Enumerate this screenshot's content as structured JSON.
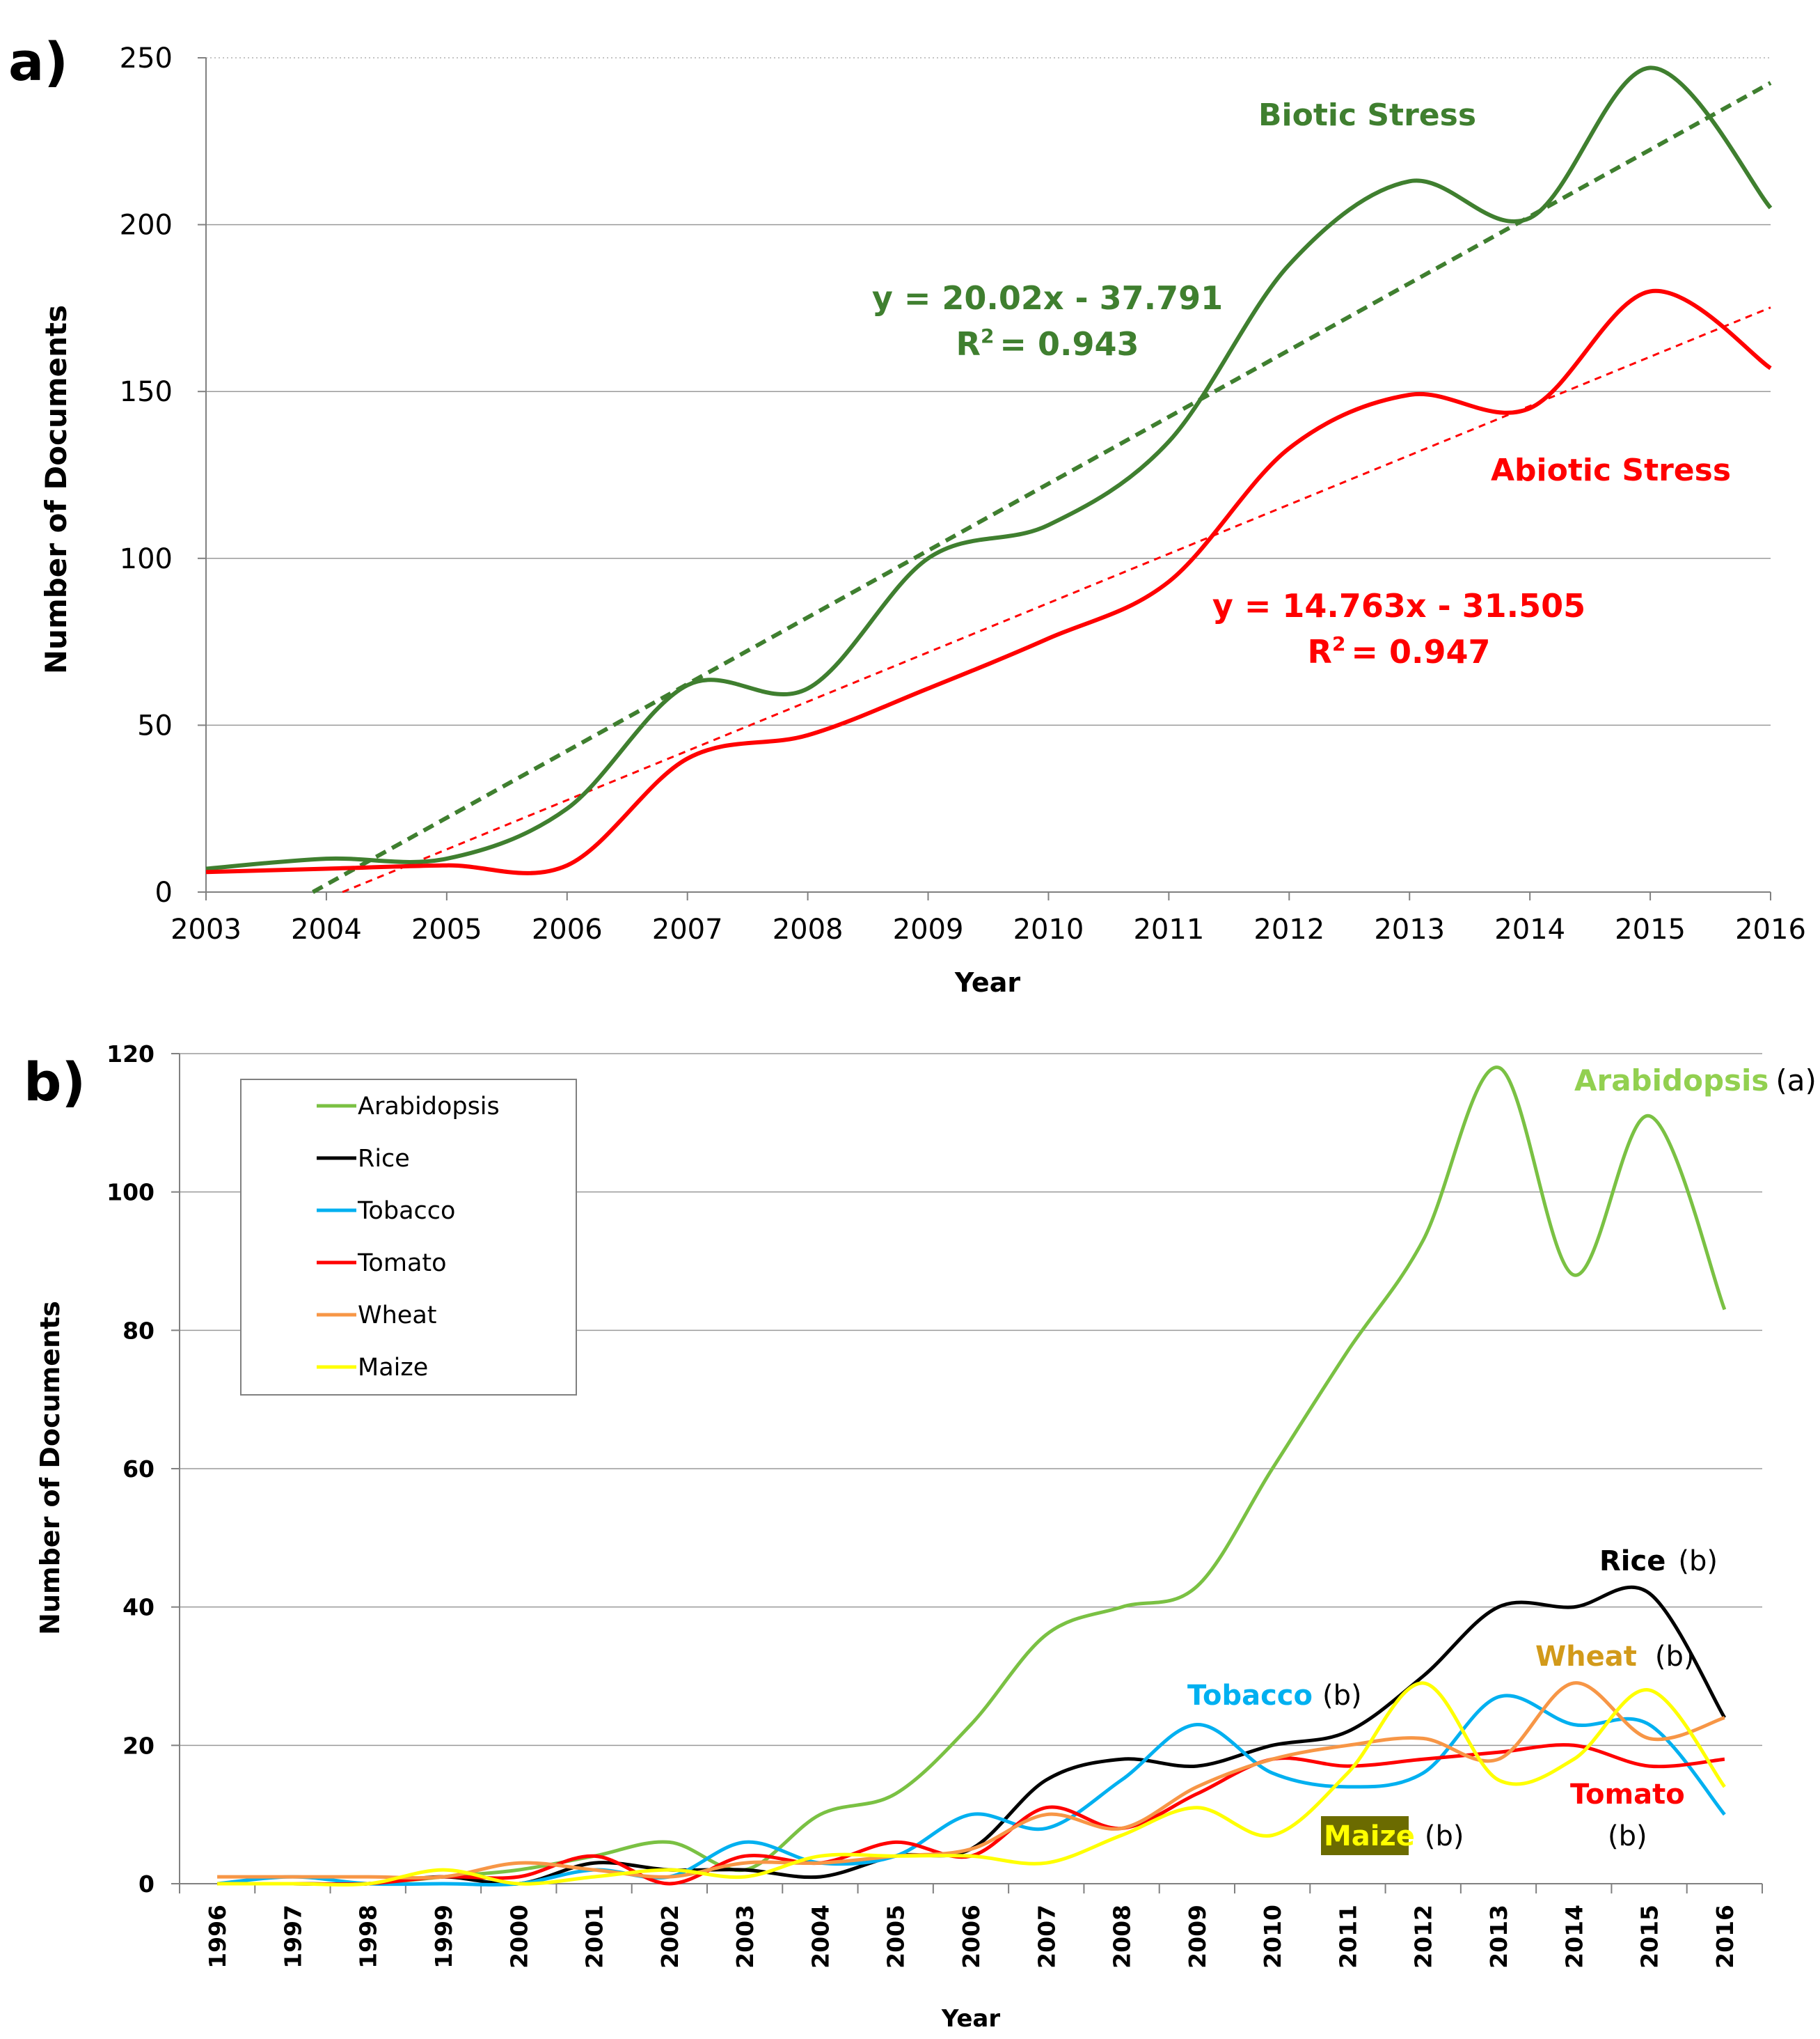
{
  "chart_data": [
    {
      "type": "line",
      "panel_label": "a)",
      "x": [
        2003,
        2004,
        2005,
        2006,
        2007,
        2008,
        2009,
        2010,
        2011,
        2012,
        2013,
        2014,
        2015,
        2016
      ],
      "xticks": [
        "2003",
        "2004",
        "2005",
        "2006",
        "2007",
        "2008",
        "2009",
        "2010",
        "2011",
        "2012",
        "2013",
        "2014",
        "2015",
        "2016"
      ],
      "yticks": [
        "0",
        "50",
        "100",
        "150",
        "200",
        "250"
      ],
      "xlabel": "Year",
      "ylabel": "Number of Documents",
      "ylim": [
        0,
        250
      ],
      "grid": true,
      "series": [
        {
          "name": "Biotic Stress",
          "color": "#3f7f2f",
          "values": [
            7,
            10,
            10,
            25,
            62,
            61,
            100,
            110,
            135,
            188,
            213,
            202,
            247,
            205
          ]
        },
        {
          "name": "Abiotic Stress",
          "color": "#ff0000",
          "values": [
            6,
            7,
            8,
            8,
            40,
            47,
            61,
            76,
            93,
            133,
            149,
            145,
            180,
            157
          ]
        }
      ],
      "trendlines": [
        {
          "series": "Biotic Stress",
          "slope": 20.02,
          "intercept": -37.791,
          "equation": "y = 20.02x - 37.791",
          "r2_prefix": "R",
          "r2_value": "= 0.943",
          "color": "#3f7f2f"
        },
        {
          "series": "Abiotic Stress",
          "slope": 14.763,
          "intercept": -31.505,
          "equation": "y = 14.763x - 31.505",
          "r2_prefix": "R",
          "r2_value": "= 0.947",
          "color": "#ff0000"
        }
      ],
      "superscript": "2",
      "annotations": {
        "biotic_label": "Biotic Stress",
        "abiotic_label": "Abiotic Stress"
      }
    },
    {
      "type": "line",
      "panel_label": "b)",
      "x": [
        1996,
        1997,
        1998,
        1999,
        2000,
        2001,
        2002,
        2003,
        2004,
        2005,
        2006,
        2007,
        2008,
        2009,
        2010,
        2011,
        2012,
        2013,
        2014,
        2015,
        2016
      ],
      "xticks": [
        "1996",
        "1997",
        "1998",
        "1999",
        "2000",
        "2001",
        "2002",
        "2003",
        "2004",
        "2005",
        "2006",
        "2007",
        "2008",
        "2009",
        "2010",
        "2011",
        "2012",
        "2013",
        "2014",
        "2015",
        "2016"
      ],
      "yticks": [
        "0",
        "20",
        "40",
        "60",
        "80",
        "100",
        "120"
      ],
      "xlabel": "Year",
      "ylabel": "Number of Documents",
      "ylim": [
        0,
        120
      ],
      "grid": true,
      "legend": "top-left",
      "series": [
        {
          "name": "Arabidopsis",
          "color": "#7ac143",
          "values": [
            0,
            0,
            0,
            1,
            2,
            4,
            6,
            2,
            10,
            13,
            23,
            36,
            40,
            43,
            60,
            77,
            93,
            118,
            88,
            111,
            83
          ]
        },
        {
          "name": "Rice",
          "color": "#000000",
          "values": [
            0,
            0,
            0,
            1,
            0,
            3,
            2,
            2,
            1,
            4,
            5,
            15,
            18,
            17,
            20,
            22,
            30,
            40,
            40,
            42,
            24
          ]
        },
        {
          "name": "Tobacco",
          "color": "#00b0f0",
          "values": [
            0,
            1,
            0,
            0,
            0,
            2,
            1,
            6,
            3,
            4,
            10,
            8,
            15,
            23,
            16,
            14,
            16,
            27,
            23,
            23,
            10
          ]
        },
        {
          "name": "Tomato",
          "color": "#ff0000",
          "values": [
            0,
            0,
            0,
            1,
            1,
            4,
            0,
            4,
            3,
            6,
            4,
            11,
            8,
            13,
            18,
            17,
            18,
            19,
            20,
            17,
            18
          ]
        },
        {
          "name": "Wheat",
          "color": "#f79646",
          "values": [
            1,
            1,
            1,
            1,
            3,
            2,
            1,
            3,
            3,
            4,
            5,
            10,
            8,
            14,
            18,
            20,
            21,
            18,
            29,
            21,
            24
          ]
        },
        {
          "name": "Maize",
          "color": "#ffff00",
          "values": [
            0,
            0,
            0,
            2,
            0,
            1,
            2,
            1,
            4,
            4,
            4,
            3,
            7,
            11,
            7,
            16,
            29,
            15,
            18,
            28,
            14
          ]
        }
      ],
      "annotations": [
        {
          "name": "Arabidopsis",
          "suffix": "(a)",
          "color": "#92d050"
        },
        {
          "name": "Rice",
          "suffix": "(b)",
          "color": "#000000"
        },
        {
          "name": "Wheat",
          "suffix": "(b)",
          "color": "#d29a1a"
        },
        {
          "name": "Tobacco",
          "suffix": "(b)",
          "color": "#00b0f0"
        },
        {
          "name": "Tomato",
          "suffix": "(b)",
          "color": "#ff0000"
        },
        {
          "name": "Maize",
          "suffix": "(b)",
          "color": "#ffff00",
          "box_color": "#6b6b00"
        }
      ]
    }
  ]
}
